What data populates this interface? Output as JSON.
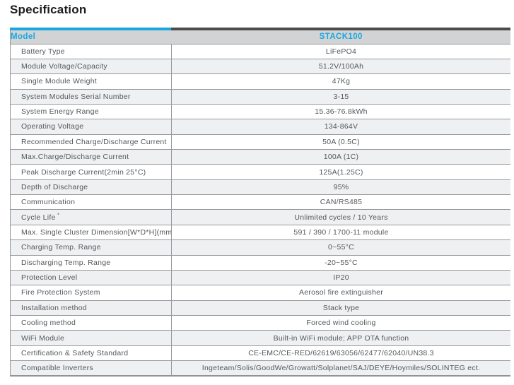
{
  "page": {
    "title": "Specification"
  },
  "table": {
    "accent": {
      "left_color": "#1aa7e0",
      "right_color": "#4c4c4e"
    },
    "header": {
      "model_label": "Model",
      "model_value": "STACK100"
    },
    "rows": [
      {
        "label": "Battery Type",
        "value": "LiFePO4"
      },
      {
        "label": "Module Voltage/Capacity",
        "value": "51.2V/100Ah"
      },
      {
        "label": "Single Module Weight",
        "value": "47Kg"
      },
      {
        "label": "System Modules Serial Number",
        "value": "3-15"
      },
      {
        "label": "System Energy Range",
        "value": "15.36-76.8kWh"
      },
      {
        "label": "Operating Voltage",
        "value": "134-864V"
      },
      {
        "label": "Recommended Charge/Discharge Current",
        "value": "50A (0.5C)"
      },
      {
        "label": "Max.Charge/Discharge Current",
        "value": "100A (1C)"
      },
      {
        "label": "Peak Discharge Current(2min 25°C)",
        "value": "125A(1.25C)"
      },
      {
        "label": "Depth of Discharge",
        "value": "95%"
      },
      {
        "label": "Communication",
        "value": "CAN/RS485"
      },
      {
        "label": "Cycle Life",
        "label_sup": "*",
        "value": "Unlimited cycles / 10 Years"
      },
      {
        "label": "Max. Single Cluster Dimension[W*D*H](mm)",
        "value": "591 / 390 / 1700-11 module"
      },
      {
        "label": "Charging Temp. Range",
        "value": "0~55°C"
      },
      {
        "label": "Discharging Temp. Range",
        "value": "-20~55°C"
      },
      {
        "label": "Protection Level",
        "value": "IP20"
      },
      {
        "label": "Fire Protection System",
        "value": "Aerosol fire extinguisher"
      },
      {
        "label": "Installation method",
        "value": "Stack type"
      },
      {
        "label": "Cooling method",
        "value": "Forced wind cooling"
      },
      {
        "label": "WiFi Module",
        "value": "Built-in WiFi module; APP OTA function"
      },
      {
        "label": "Certification & Safety Standard",
        "value": "CE-EMC/CE-RED/62619/63056/62477/62040/UN38.3"
      },
      {
        "label": "Compatible Inverters",
        "value": "Ingeteam/Solis/GoodWe/Growatt/Solplanet/SAJ/DEYE/Hoymiles/SOLINTEG ect."
      }
    ]
  }
}
